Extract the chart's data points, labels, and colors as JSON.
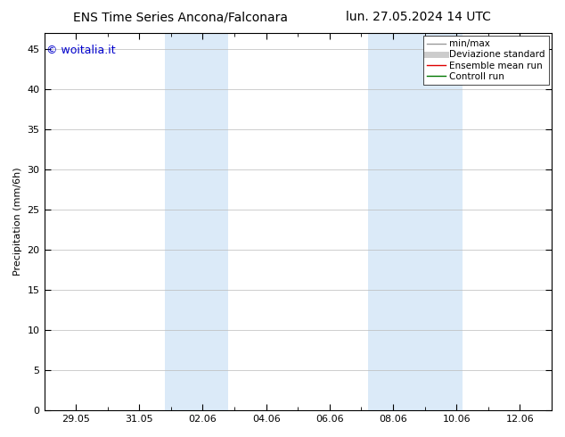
{
  "title_left": "ENS Time Series Ancona/Falconara",
  "title_right": "lun. 27.05.2024 14 UTC",
  "ylabel": "Precipitation (mm/6h)",
  "copyright": "© woitalia.it",
  "copyright_color": "#0000cc",
  "ylim": [
    0,
    47
  ],
  "yticks": [
    0,
    5,
    10,
    15,
    20,
    25,
    30,
    35,
    40,
    45
  ],
  "xtick_labels": [
    "29.05",
    "31.05",
    "02.06",
    "04.06",
    "06.06",
    "08.06",
    "10.06",
    "12.06"
  ],
  "xmin": 0.0,
  "xmax": 16.0,
  "shaded_bands": [
    {
      "xmin": 3.8,
      "xmax": 5.8,
      "color": "#dbeaf8"
    },
    {
      "xmin": 10.2,
      "xmax": 13.2,
      "color": "#dbeaf8"
    }
  ],
  "background_color": "#ffffff",
  "plot_bg_color": "#ffffff",
  "grid_color": "#bbbbbb",
  "legend_entries": [
    {
      "label": "min/max",
      "color": "#999999",
      "lw": 1.0
    },
    {
      "label": "Deviazione standard",
      "color": "#cccccc",
      "lw": 5
    },
    {
      "label": "Ensemble mean run",
      "color": "#dd0000",
      "lw": 1.0
    },
    {
      "label": "Controll run",
      "color": "#007700",
      "lw": 1.0
    }
  ],
  "title_fontsize": 10,
  "label_fontsize": 8,
  "tick_fontsize": 8,
  "legend_fontsize": 7.5,
  "copyright_fontsize": 9
}
